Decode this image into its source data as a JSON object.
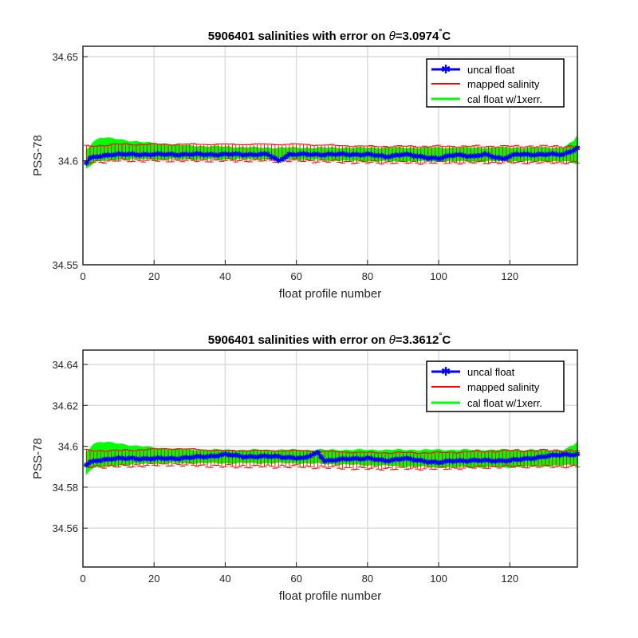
{
  "chart_data": [
    {
      "type": "line",
      "title_prefix": "5906401 salinities with error on ",
      "title_theta": "θ",
      "title_eq": "=3.0974",
      "title_deg": "°",
      "title_unit": "C",
      "xlabel": "float profile number",
      "ylabel": "PSS-78",
      "xlim": [
        0,
        139
      ],
      "ylim": [
        34.55,
        34.655
      ],
      "xticks": [
        0,
        20,
        40,
        60,
        80,
        100,
        120
      ],
      "yticks": [
        34.55,
        34.6,
        34.65
      ],
      "ytick_labels": [
        "34.55",
        "34.6",
        "34.65"
      ],
      "grid": true,
      "legend_position": "top-right",
      "n_profiles": 139,
      "series": [
        {
          "name": "uncal float",
          "color": "#0000ff",
          "style": "line-with-star-markers",
          "anchors_x": [
            1,
            2,
            4,
            8,
            15,
            25,
            35,
            45,
            52,
            55,
            58,
            62,
            68,
            75,
            80,
            85,
            90,
            95,
            100,
            105,
            110,
            113,
            118,
            122,
            128,
            132,
            135,
            139
          ],
          "anchors_y": [
            34.599,
            34.601,
            34.602,
            34.603,
            34.603,
            34.603,
            34.603,
            34.603,
            34.603,
            34.6,
            34.603,
            34.603,
            34.603,
            34.603,
            34.603,
            34.602,
            34.603,
            34.602,
            34.601,
            34.603,
            34.602,
            34.603,
            34.601,
            34.603,
            34.603,
            34.603,
            34.603,
            34.606
          ]
        },
        {
          "name": "mapped salinity",
          "color": "#ff0000",
          "style": "errorbars",
          "anchors_x": [
            1,
            10,
            25,
            40,
            60,
            80,
            100,
            120,
            139
          ],
          "anchors_y": [
            34.603,
            34.604,
            34.604,
            34.604,
            34.604,
            34.603,
            34.603,
            34.603,
            34.603
          ],
          "err": 0.004
        },
        {
          "name": "cal float w/1xerr.",
          "color": "#00ff00",
          "style": "fill-band",
          "upper_x": [
            1,
            3,
            5,
            10,
            15,
            20,
            30,
            50,
            70,
            80,
            100,
            120,
            135,
            138,
            139
          ],
          "upper_y": [
            34.605,
            34.609,
            34.611,
            34.61,
            34.609,
            34.608,
            34.607,
            34.606,
            34.606,
            34.606,
            34.606,
            34.606,
            34.606,
            34.609,
            34.612
          ],
          "lower_x": [
            1,
            2,
            4,
            10,
            20,
            40,
            60,
            80,
            100,
            120,
            135,
            139
          ],
          "lower_y": [
            34.597,
            34.598,
            34.6,
            34.601,
            34.601,
            34.601,
            34.601,
            34.6,
            34.6,
            34.6,
            34.6,
            34.599
          ]
        }
      ]
    },
    {
      "type": "line",
      "title_prefix": "5906401 salinities with error on ",
      "title_theta": "θ",
      "title_eq": "=3.3612",
      "title_deg": "°",
      "title_unit": "C",
      "xlabel": "float profile number",
      "ylabel": "PSS-78",
      "xlim": [
        0,
        139
      ],
      "ylim": [
        34.541,
        34.647
      ],
      "xticks": [
        0,
        20,
        40,
        60,
        80,
        100,
        120
      ],
      "yticks": [
        34.56,
        34.58,
        34.6,
        34.62,
        34.64
      ],
      "ytick_labels": [
        "34.56",
        "34.58",
        "34.6",
        "34.62",
        "34.64"
      ],
      "grid": true,
      "legend_position": "top-right",
      "n_profiles": 139,
      "series": [
        {
          "name": "uncal float",
          "color": "#0000ff",
          "style": "line-with-star-markers",
          "anchors_x": [
            1,
            2,
            4,
            8,
            15,
            25,
            35,
            40,
            45,
            55,
            62,
            66,
            68,
            70,
            75,
            80,
            85,
            90,
            95,
            100,
            105,
            110,
            115,
            120,
            125,
            130,
            135,
            139
          ],
          "anchors_y": [
            34.591,
            34.592,
            34.593,
            34.594,
            34.594,
            34.594,
            34.595,
            34.596,
            34.595,
            34.595,
            34.594,
            34.597,
            34.593,
            34.593,
            34.594,
            34.594,
            34.593,
            34.594,
            34.593,
            34.592,
            34.593,
            34.593,
            34.593,
            34.593,
            34.594,
            34.595,
            34.596,
            34.596
          ]
        },
        {
          "name": "mapped salinity",
          "color": "#ff0000",
          "style": "errorbars",
          "anchors_x": [
            1,
            10,
            25,
            40,
            60,
            80,
            100,
            120,
            139
          ],
          "anchors_y": [
            34.594,
            34.594,
            34.595,
            34.594,
            34.594,
            34.593,
            34.593,
            34.594,
            34.594
          ],
          "err": 0.004
        },
        {
          "name": "cal float w/1xerr.",
          "color": "#00ff00",
          "style": "fill-band",
          "upper_x": [
            1,
            3,
            5,
            10,
            15,
            20,
            30,
            50,
            70,
            80,
            100,
            120,
            135,
            138,
            139
          ],
          "upper_y": [
            34.597,
            34.601,
            34.602,
            34.601,
            34.6,
            34.599,
            34.598,
            34.598,
            34.598,
            34.598,
            34.598,
            34.598,
            34.598,
            34.6,
            34.602
          ],
          "lower_x": [
            1,
            2,
            4,
            10,
            20,
            40,
            60,
            80,
            100,
            120,
            135,
            139
          ],
          "lower_y": [
            34.587,
            34.589,
            34.59,
            34.591,
            34.592,
            34.592,
            34.592,
            34.591,
            34.59,
            34.59,
            34.591,
            34.591
          ]
        }
      ]
    }
  ]
}
